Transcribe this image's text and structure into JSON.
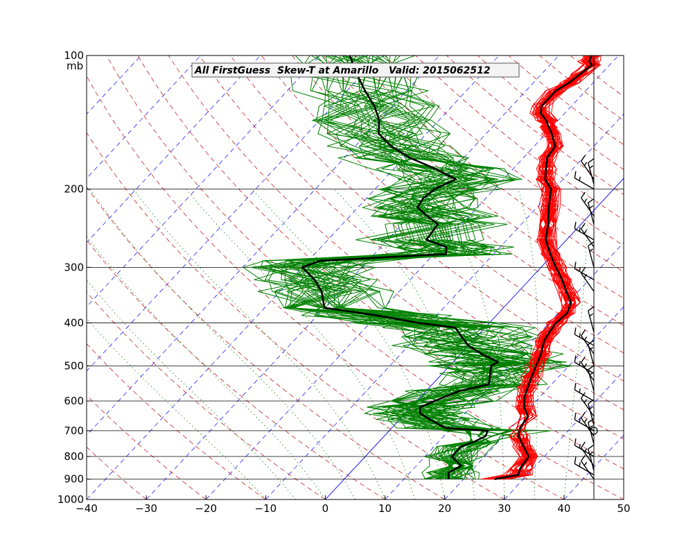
{
  "chart_data": {
    "type": "line",
    "chart_kind": "skew-t log-p",
    "title": "All FirstGuess  Skew-T at Amarillo   Valid: 2015062512",
    "xlabel": "",
    "ylabel": "",
    "y_unit": "mb",
    "xlim": [
      -40,
      50
    ],
    "ylim": [
      1000,
      100
    ],
    "y_scale": "log",
    "x_ticks": [
      -40,
      -30,
      -20,
      -10,
      0,
      10,
      20,
      30,
      40,
      50
    ],
    "y_ticks": [
      1000,
      900,
      800,
      700,
      600,
      500,
      400,
      300,
      200,
      100
    ],
    "grid": true,
    "colors": {
      "temperature": "#ff0000",
      "dewpoint": "#008000",
      "mean_profile": "#000000",
      "isotherm": "#0000ff",
      "dry_adiabat": "#c00000",
      "moist_adiabat": "#008000",
      "wind_barb": "#000000"
    },
    "series": [
      {
        "kind": "temperature-mean",
        "points": [
          [
            900,
            25.2
          ],
          [
            880,
            28.5
          ],
          [
            850,
            27.8
          ],
          [
            800,
            27.4
          ],
          [
            760,
            25.0
          ],
          [
            720,
            22.5
          ],
          [
            690,
            21.5
          ],
          [
            650,
            21.0
          ],
          [
            620,
            19.0
          ],
          [
            590,
            17.5
          ],
          [
            560,
            16.5
          ],
          [
            530,
            15.5
          ],
          [
            500,
            14.5
          ],
          [
            470,
            13.5
          ],
          [
            440,
            12.0
          ],
          [
            420,
            11.5
          ],
          [
            400,
            11.2
          ],
          [
            380,
            11.5
          ],
          [
            360,
            10.5
          ],
          [
            340,
            8.0
          ],
          [
            320,
            5.5
          ],
          [
            300,
            2.5
          ],
          [
            280,
            -0.5
          ],
          [
            260,
            -3.5
          ],
          [
            240,
            -5.5
          ],
          [
            220,
            -8.0
          ],
          [
            200,
            -10.5
          ],
          [
            190,
            -13.0
          ],
          [
            180,
            -14.5
          ],
          [
            170,
            -16.0
          ],
          [
            160,
            -16.5
          ],
          [
            150,
            -19.0
          ],
          [
            145,
            -20.5
          ],
          [
            140,
            -22.0
          ],
          [
            135,
            -24.0
          ],
          [
            130,
            -25.0
          ],
          [
            120,
            -25.0
          ],
          [
            115,
            -24.0
          ],
          [
            110,
            -23.5
          ],
          [
            105,
            -23.0
          ],
          [
            103,
            -24.0
          ],
          [
            100,
            -24.5
          ]
        ]
      },
      {
        "kind": "dewpoint-mean",
        "points": [
          [
            900,
            17.5
          ],
          [
            870,
            16.5
          ],
          [
            840,
            17.5
          ],
          [
            800,
            14.5
          ],
          [
            760,
            14.5
          ],
          [
            740,
            16.0
          ],
          [
            720,
            17.0
          ],
          [
            700,
            16.5
          ],
          [
            690,
            9.0
          ],
          [
            660,
            5.0
          ],
          [
            640,
            2.5
          ],
          [
            620,
            1.5
          ],
          [
            600,
            3.0
          ],
          [
            570,
            5.5
          ],
          [
            550,
            9.5
          ],
          [
            520,
            8.0
          ],
          [
            500,
            7.0
          ],
          [
            490,
            7.5
          ],
          [
            470,
            3.5
          ],
          [
            450,
            0.0
          ],
          [
            430,
            -2.5
          ],
          [
            410,
            -5.0
          ],
          [
            400,
            -12.0
          ],
          [
            385,
            -20.0
          ],
          [
            370,
            -30.0
          ],
          [
            340,
            -33.0
          ],
          [
            320,
            -36.0
          ],
          [
            300,
            -40.0
          ],
          [
            290,
            -38.0
          ],
          [
            280,
            -18.0
          ],
          [
            270,
            -19.0
          ],
          [
            260,
            -23.5
          ],
          [
            240,
            -24.0
          ],
          [
            230,
            -27.0
          ],
          [
            220,
            -30.0
          ],
          [
            210,
            -30.5
          ],
          [
            200,
            -30.0
          ],
          [
            190,
            -28.0
          ],
          [
            180,
            -33.0
          ],
          [
            170,
            -39.0
          ],
          [
            160,
            -44.0
          ],
          [
            150,
            -48.0
          ],
          [
            140,
            -50.0
          ],
          [
            130,
            -53.0
          ],
          [
            120,
            -57.0
          ],
          [
            110,
            -61.0
          ],
          [
            100,
            -65.0
          ]
        ]
      }
    ],
    "ensemble_members": {
      "temperature_count": 40,
      "dewpoint_count": 40
    },
    "wind_barbs": {
      "x_position": 45,
      "levels_mb": [
        900,
        880,
        860,
        840,
        800,
        750,
        720,
        700,
        680,
        650,
        600,
        570,
        540,
        520,
        500,
        470,
        450,
        420,
        340,
        320,
        300,
        270,
        260,
        240,
        230,
        200,
        195,
        190
      ]
    }
  }
}
